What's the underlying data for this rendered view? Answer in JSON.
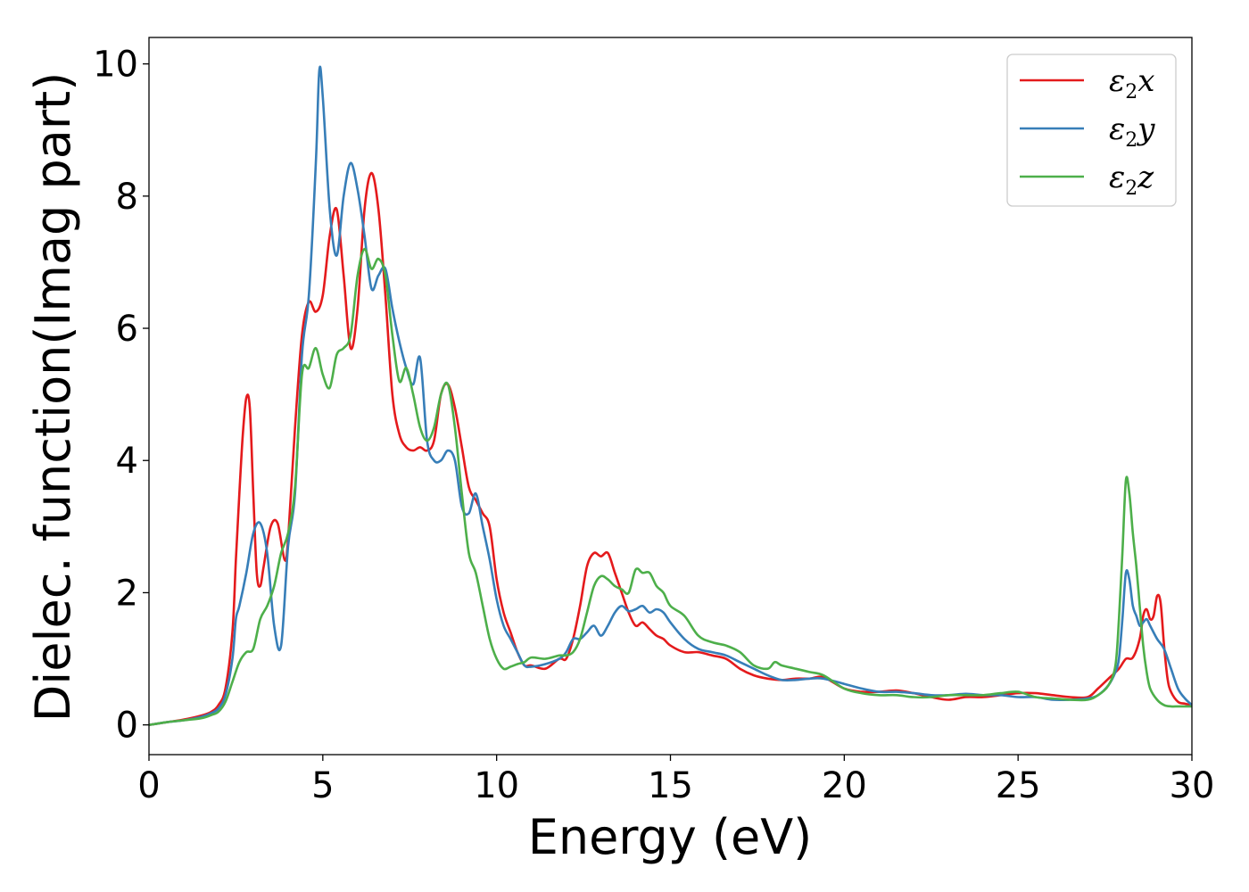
{
  "chart_data": {
    "type": "line",
    "title": "",
    "xlabel": "Energy (eV)",
    "ylabel": "Dielec. function(Imag part)",
    "xlim": [
      0,
      30
    ],
    "ylim": [
      -0.45,
      10.4
    ],
    "xticks": [
      0,
      5,
      10,
      15,
      20,
      25,
      30
    ],
    "yticks": [
      0,
      2,
      4,
      6,
      8,
      10
    ],
    "grid": false,
    "legend_position": "top-right",
    "series": [
      {
        "name_main": "ε",
        "name_sub": "2",
        "name_suffix": "x",
        "color": "#e41a1c",
        "x": [
          0,
          0.5,
          1,
          1.5,
          1.8,
          2,
          2.2,
          2.4,
          2.5,
          2.6,
          2.7,
          2.8,
          2.9,
          3,
          3.1,
          3.2,
          3.3,
          3.5,
          3.7,
          3.9,
          4.0,
          4.2,
          4.4,
          4.6,
          4.8,
          5.0,
          5.2,
          5.4,
          5.6,
          5.8,
          6.0,
          6.2,
          6.4,
          6.6,
          6.8,
          7.0,
          7.2,
          7.4,
          7.6,
          7.8,
          8.0,
          8.2,
          8.4,
          8.6,
          8.8,
          9.0,
          9.2,
          9.4,
          9.6,
          9.8,
          10.0,
          10.2,
          10.4,
          10.6,
          10.8,
          11.0,
          11.4,
          11.8,
          12.0,
          12.2,
          12.4,
          12.6,
          12.8,
          13.0,
          13.2,
          13.4,
          13.6,
          13.8,
          14.0,
          14.2,
          14.4,
          14.6,
          14.8,
          15.0,
          15.4,
          15.8,
          16.2,
          16.6,
          17.0,
          17.4,
          17.8,
          18.2,
          18.6,
          19.0,
          19.4,
          20.0,
          20.5,
          21.0,
          21.5,
          22.0,
          22.5,
          23.0,
          23.5,
          24.0,
          24.5,
          25.0,
          25.5,
          26.0,
          26.5,
          27.0,
          27.3,
          27.6,
          27.9,
          28.1,
          28.3,
          28.5,
          28.6,
          28.7,
          28.8,
          28.9,
          29.0,
          29.1,
          29.2,
          29.3,
          29.4,
          29.6,
          29.8,
          30
        ],
        "y": [
          0,
          0.04,
          0.08,
          0.14,
          0.2,
          0.3,
          0.55,
          1.4,
          2.5,
          3.5,
          4.4,
          4.95,
          4.8,
          3.5,
          2.3,
          2.1,
          2.4,
          3.0,
          3.05,
          2.5,
          2.8,
          4.5,
          5.9,
          6.4,
          6.25,
          6.5,
          7.4,
          7.8,
          6.8,
          5.7,
          6.3,
          7.8,
          8.35,
          7.8,
          6.5,
          5.0,
          4.4,
          4.2,
          4.15,
          4.2,
          4.15,
          4.3,
          5.0,
          5.15,
          4.8,
          4.2,
          3.6,
          3.4,
          3.2,
          3.0,
          2.2,
          1.7,
          1.4,
          1.1,
          0.9,
          0.9,
          0.85,
          1.0,
          1.0,
          1.3,
          1.8,
          2.4,
          2.6,
          2.55,
          2.6,
          2.3,
          2.0,
          1.7,
          1.5,
          1.55,
          1.45,
          1.35,
          1.3,
          1.2,
          1.1,
          1.1,
          1.05,
          1.0,
          0.85,
          0.75,
          0.7,
          0.68,
          0.7,
          0.7,
          0.72,
          0.55,
          0.5,
          0.5,
          0.52,
          0.48,
          0.42,
          0.38,
          0.42,
          0.42,
          0.45,
          0.48,
          0.48,
          0.45,
          0.42,
          0.42,
          0.55,
          0.7,
          0.85,
          1.0,
          1.02,
          1.3,
          1.65,
          1.75,
          1.6,
          1.65,
          1.95,
          1.85,
          1.2,
          0.7,
          0.5,
          0.35,
          0.32,
          0.3
        ]
      },
      {
        "name_main": "ε",
        "name_sub": "2",
        "name_suffix": "y",
        "color": "#377eb8",
        "x": [
          0,
          0.5,
          1,
          1.5,
          1.8,
          2,
          2.2,
          2.4,
          2.5,
          2.6,
          2.8,
          3.0,
          3.2,
          3.4,
          3.6,
          3.8,
          4.0,
          4.2,
          4.4,
          4.6,
          4.8,
          4.9,
          5.0,
          5.2,
          5.4,
          5.6,
          5.8,
          6.0,
          6.2,
          6.4,
          6.6,
          6.8,
          7.0,
          7.2,
          7.4,
          7.6,
          7.8,
          8.0,
          8.2,
          8.4,
          8.6,
          8.8,
          9.0,
          9.2,
          9.4,
          9.6,
          9.8,
          10.0,
          10.2,
          10.4,
          10.6,
          10.8,
          11.0,
          11.4,
          11.8,
          12.0,
          12.2,
          12.4,
          12.6,
          12.8,
          13.0,
          13.2,
          13.4,
          13.6,
          13.8,
          14.0,
          14.2,
          14.4,
          14.6,
          14.8,
          15.0,
          15.4,
          15.8,
          16.2,
          16.6,
          17.0,
          17.4,
          17.8,
          18.2,
          18.6,
          19.0,
          19.4,
          20.0,
          20.5,
          21.0,
          21.5,
          22.0,
          22.5,
          23.0,
          23.5,
          24.0,
          24.5,
          25.0,
          25.5,
          26.0,
          26.5,
          27.0,
          27.3,
          27.6,
          27.8,
          27.9,
          28.0,
          28.1,
          28.2,
          28.3,
          28.4,
          28.5,
          28.6,
          28.7,
          28.8,
          29.0,
          29.2,
          29.4,
          29.6,
          29.8,
          30
        ],
        "y": [
          0,
          0.04,
          0.07,
          0.12,
          0.18,
          0.25,
          0.45,
          1.0,
          1.6,
          1.8,
          2.3,
          2.9,
          3.05,
          2.6,
          1.5,
          1.2,
          2.7,
          3.5,
          5.6,
          6.5,
          8.5,
          9.9,
          9.5,
          7.8,
          7.1,
          8.0,
          8.5,
          8.1,
          7.4,
          6.6,
          6.8,
          6.9,
          6.3,
          5.8,
          5.4,
          5.15,
          5.55,
          4.3,
          4.0,
          4.0,
          4.15,
          4.0,
          3.3,
          3.2,
          3.5,
          3.0,
          2.5,
          1.9,
          1.5,
          1.3,
          1.1,
          0.9,
          0.88,
          0.92,
          1.0,
          1.1,
          1.3,
          1.3,
          1.4,
          1.5,
          1.35,
          1.5,
          1.7,
          1.8,
          1.72,
          1.75,
          1.8,
          1.7,
          1.75,
          1.7,
          1.55,
          1.3,
          1.15,
          1.1,
          1.05,
          0.95,
          0.85,
          0.75,
          0.68,
          0.68,
          0.7,
          0.7,
          0.62,
          0.55,
          0.5,
          0.5,
          0.48,
          0.45,
          0.45,
          0.47,
          0.45,
          0.45,
          0.42,
          0.42,
          0.38,
          0.38,
          0.4,
          0.45,
          0.6,
          0.8,
          1.0,
          1.6,
          2.3,
          2.2,
          1.8,
          1.65,
          1.5,
          1.55,
          1.6,
          1.5,
          1.3,
          1.15,
          0.85,
          0.55,
          0.4,
          0.3
        ]
      },
      {
        "name_main": "ε",
        "name_sub": "2",
        "name_suffix": "z",
        "color": "#4daf4a",
        "x": [
          0,
          0.5,
          1,
          1.5,
          1.8,
          2,
          2.2,
          2.4,
          2.6,
          2.8,
          3.0,
          3.2,
          3.4,
          3.6,
          3.8,
          4.0,
          4.2,
          4.4,
          4.6,
          4.8,
          5.0,
          5.2,
          5.4,
          5.6,
          5.8,
          6.0,
          6.2,
          6.4,
          6.6,
          6.8,
          7.0,
          7.2,
          7.4,
          7.6,
          7.8,
          8.0,
          8.2,
          8.4,
          8.6,
          8.8,
          9.0,
          9.2,
          9.4,
          9.6,
          9.8,
          10.0,
          10.2,
          10.4,
          10.6,
          10.8,
          11.0,
          11.4,
          11.8,
          12.0,
          12.2,
          12.4,
          12.6,
          12.8,
          13.0,
          13.2,
          13.4,
          13.6,
          13.8,
          14.0,
          14.2,
          14.4,
          14.6,
          14.8,
          15.0,
          15.4,
          15.8,
          16.2,
          16.6,
          17.0,
          17.4,
          17.8,
          18.0,
          18.2,
          18.6,
          19.0,
          19.4,
          20.0,
          20.5,
          21.0,
          21.5,
          22.0,
          22.5,
          23.0,
          23.5,
          24.0,
          24.5,
          25.0,
          25.5,
          26.0,
          26.5,
          27.0,
          27.3,
          27.6,
          27.8,
          27.9,
          28.0,
          28.1,
          28.2,
          28.3,
          28.4,
          28.5,
          28.6,
          28.7,
          28.8,
          29.0,
          29.2,
          29.4,
          29.6,
          29.8,
          30
        ],
        "y": [
          0,
          0.04,
          0.07,
          0.1,
          0.15,
          0.2,
          0.35,
          0.65,
          0.95,
          1.1,
          1.15,
          1.6,
          1.8,
          2.1,
          2.6,
          2.9,
          3.6,
          5.3,
          5.4,
          5.7,
          5.3,
          5.1,
          5.6,
          5.7,
          5.9,
          6.8,
          7.2,
          6.9,
          7.05,
          6.8,
          5.9,
          5.2,
          5.4,
          5.0,
          4.5,
          4.3,
          4.5,
          5.0,
          5.15,
          4.5,
          3.5,
          2.6,
          2.3,
          1.8,
          1.3,
          1.0,
          0.85,
          0.88,
          0.92,
          0.95,
          1.02,
          1.0,
          1.05,
          1.05,
          1.1,
          1.3,
          1.7,
          2.1,
          2.25,
          2.2,
          2.1,
          2.05,
          2.0,
          2.35,
          2.3,
          2.3,
          2.1,
          2.0,
          1.8,
          1.65,
          1.35,
          1.25,
          1.2,
          1.1,
          0.9,
          0.85,
          0.95,
          0.9,
          0.85,
          0.8,
          0.75,
          0.55,
          0.48,
          0.45,
          0.45,
          0.42,
          0.42,
          0.45,
          0.45,
          0.45,
          0.48,
          0.5,
          0.42,
          0.4,
          0.38,
          0.38,
          0.45,
          0.6,
          0.9,
          1.6,
          2.6,
          3.7,
          3.5,
          2.9,
          2.4,
          1.8,
          1.2,
          0.8,
          0.55,
          0.38,
          0.3,
          0.28,
          0.28,
          0.28,
          0.28
        ]
      }
    ]
  }
}
